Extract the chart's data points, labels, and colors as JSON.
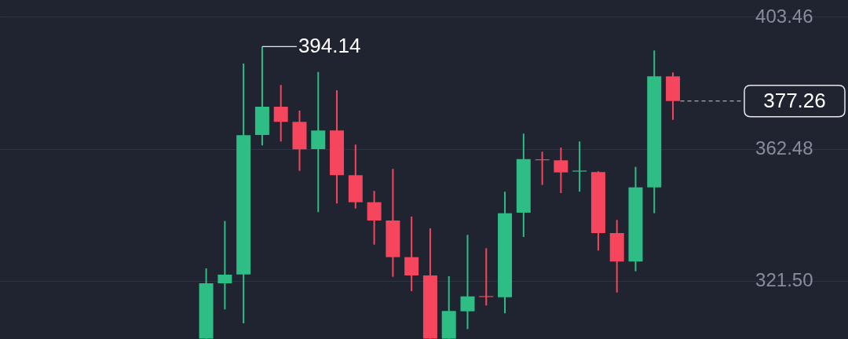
{
  "chart_data": {
    "type": "candlestick",
    "categories": [
      null,
      null,
      null,
      null,
      null,
      null,
      null,
      null,
      null,
      null,
      null,
      null,
      null,
      null,
      null,
      null,
      null,
      null,
      null,
      null,
      null,
      null,
      null,
      null,
      null,
      null
    ],
    "ohlc": [
      [
        303.6,
        325.39,
        303.6,
        320.77
      ],
      [
        320.77,
        340.06,
        312.67,
        323.45
      ],
      [
        323.52,
        388.87,
        308.37,
        366.66
      ],
      [
        366.74,
        394.14,
        363.5,
        375.49
      ],
      [
        375.49,
        382.23,
        364.72,
        370.8
      ],
      [
        370.8,
        374.28,
        355.62,
        362.29
      ],
      [
        362.36,
        386.27,
        342.83,
        368.12
      ],
      [
        368.12,
        380.6,
        345.51,
        354.26
      ],
      [
        354.26,
        363.75,
        343.95,
        345.89
      ],
      [
        345.89,
        349.4,
        332.76,
        340.23
      ],
      [
        340.23,
        356.21,
        322.79,
        328.87
      ],
      [
        328.87,
        341.44,
        318.34,
        323.2
      ],
      [
        323.2,
        337.8,
        303.6,
        303.6
      ],
      [
        303.6,
        322.96,
        303.6,
        312.19
      ],
      [
        312.09,
        335.78,
        306.59,
        316.71
      ],
      [
        316.8,
        331.64,
        313.89,
        316.5
      ],
      [
        316.47,
        349.15,
        311.46,
        342.49
      ],
      [
        342.66,
        367.15,
        335.12,
        359.27
      ],
      [
        359.2,
        361.56,
        351.25,
        358.9
      ],
      [
        358.88,
        362.85,
        348.74,
        355.14
      ],
      [
        355.4,
        364.72,
        349.15,
        355.7
      ],
      [
        355.23,
        355.5,
        330.91,
        336.34
      ],
      [
        336.34,
        340.4,
        317.93,
        327.51
      ],
      [
        327.51,
        356.84,
        324.49,
        350.52
      ],
      [
        350.52,
        392.93,
        342.49,
        384.9
      ],
      [
        384.9,
        386.12,
        371.43,
        377.26
      ]
    ],
    "colors": [
      "#2ebd85",
      "#2ebd85",
      "#2ebd85",
      "#2ebd85",
      "#f6465d",
      "#f6465d",
      "#2ebd85",
      "#f6465d",
      "#f6465d",
      "#f6465d",
      "#f6465d",
      "#f6465d",
      "#f6465d",
      "#2ebd85",
      "#2ebd85",
      "#f6465d",
      "#2ebd85",
      "#2ebd85",
      "#f6465d",
      "#f6465d",
      "#2ebd85",
      "#f6465d",
      "#f6465d",
      "#2ebd85",
      "#2ebd85",
      "#f6465d"
    ],
    "ylim": [
      303.5,
      408.57
    ],
    "yticks": [
      {
        "value": 321.5,
        "label": "321.50"
      },
      362.48,
      403.46
    ],
    "grid": "y",
    "tick_labels": "y",
    "ref_lines": [
      {
        "axis": "y",
        "value": 377.26,
        "label": "377.26",
        "line_style": "dashed"
      }
    ],
    "annotations": [
      "394.14"
    ]
  }
}
